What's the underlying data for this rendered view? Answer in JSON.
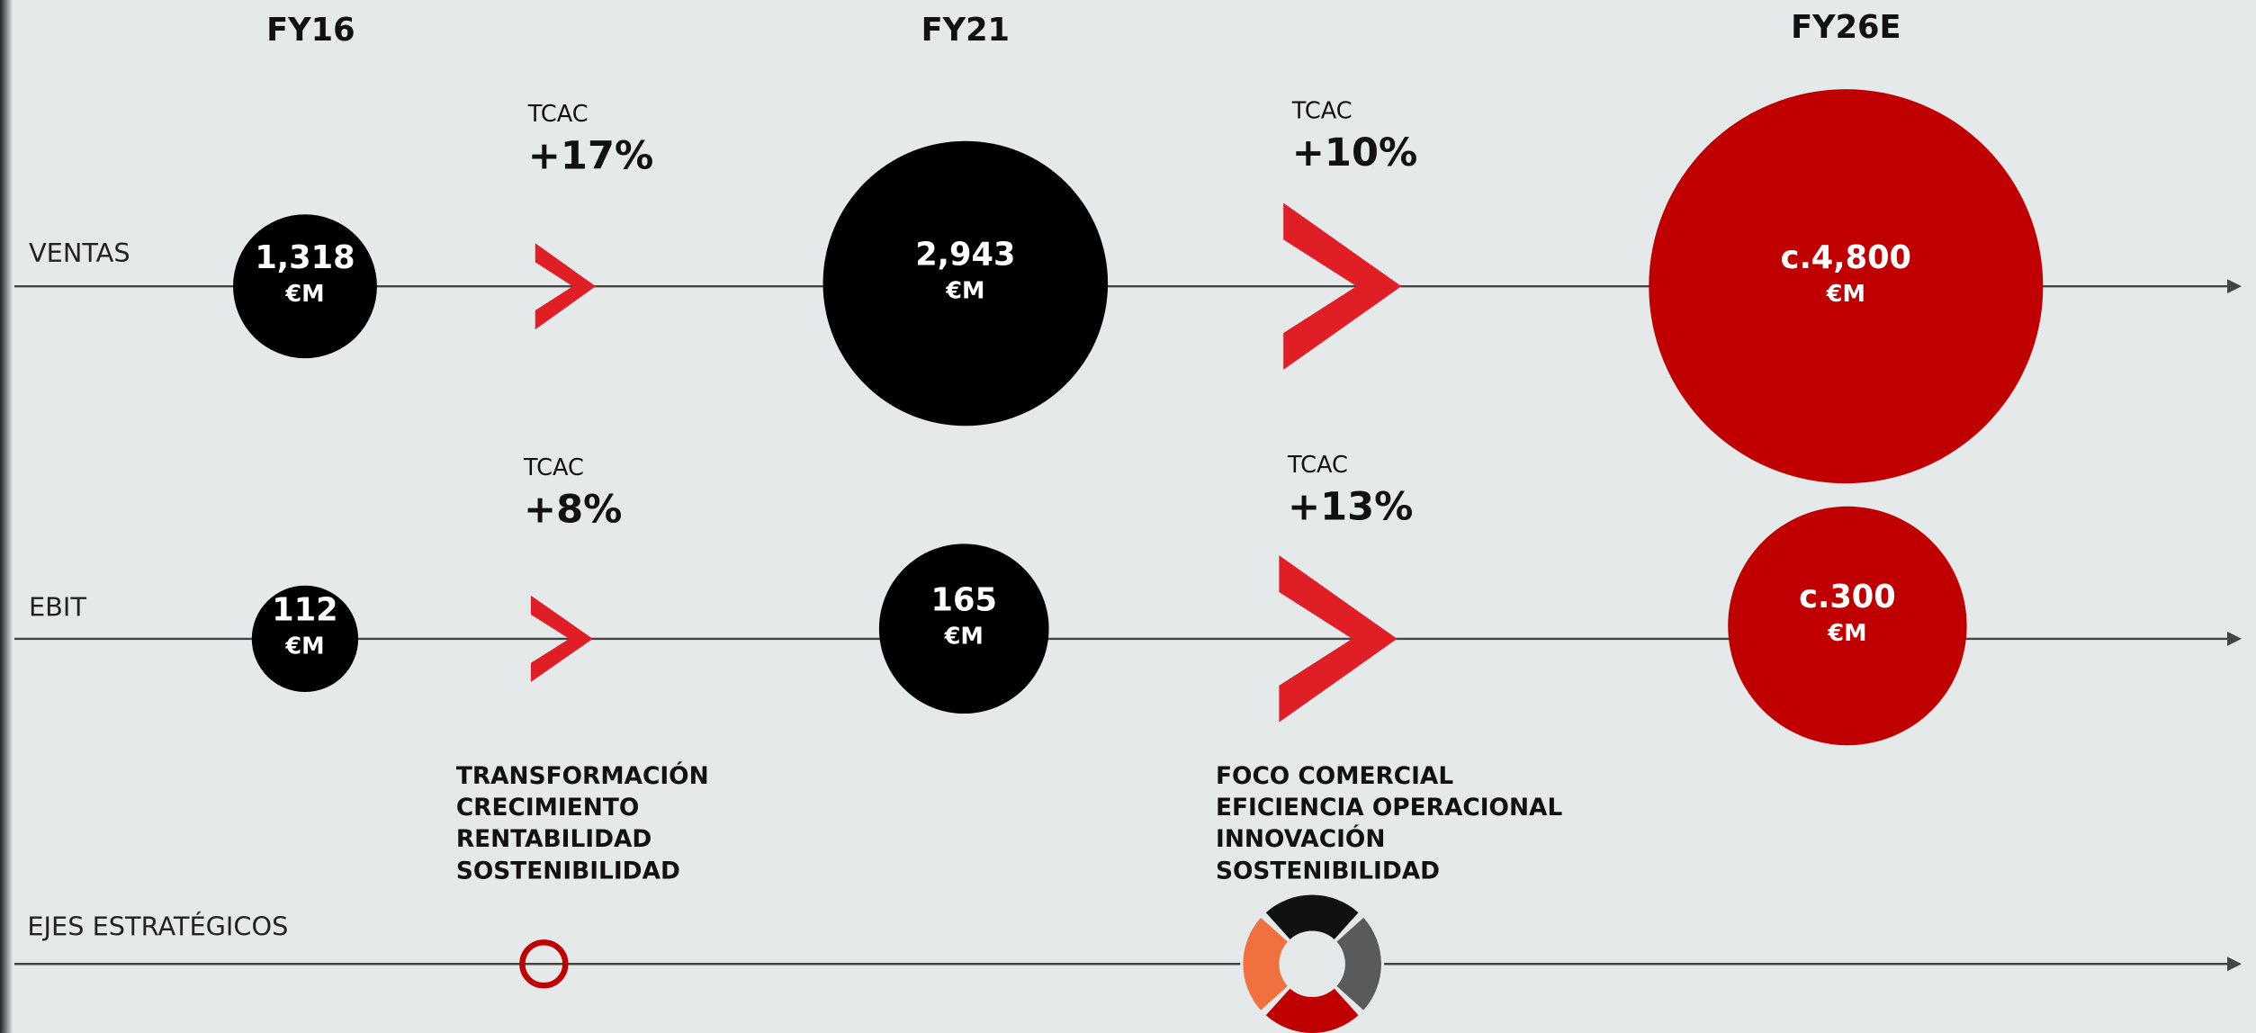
{
  "columns": [
    "FY16",
    "FY21",
    "FY26E"
  ],
  "rows": [
    {
      "label": "VENTAS",
      "values": [
        {
          "value": "1,318",
          "unit": "€M"
        },
        {
          "value": "2,943",
          "unit": "€M"
        },
        {
          "value": "c.4,800",
          "unit": "€M"
        }
      ],
      "growth": [
        {
          "label": "TCAC",
          "value": "+17%"
        },
        {
          "label": "TCAC",
          "value": "+10%"
        }
      ]
    },
    {
      "label": "EBIT",
      "values": [
        {
          "value": "112",
          "unit": "€M"
        },
        {
          "value": "165",
          "unit": "€M"
        },
        {
          "value": "c.300",
          "unit": "€M"
        }
      ],
      "growth": [
        {
          "label": "TCAC",
          "value": "+8%"
        },
        {
          "label": "TCAC",
          "value": "+13%"
        }
      ]
    }
  ],
  "axes": {
    "label": "EJES ESTRATÉGICOS",
    "lists": [
      [
        "TRANSFORMACIÓN",
        "CRECIMIENTO",
        "RENTABILIDAD",
        "SOSTENIBILIDAD"
      ],
      [
        "FOCO COMERCIAL",
        "EFICIENCIA OPERACIONAL",
        "INNOVACIÓN",
        "SOSTENIBILIDAD"
      ]
    ]
  }
}
